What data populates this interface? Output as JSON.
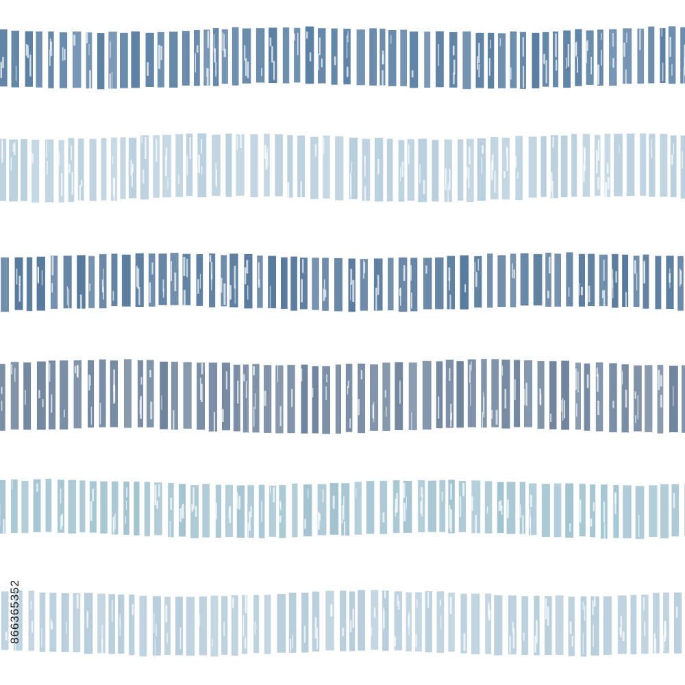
{
  "image_id": "866365352"
}
